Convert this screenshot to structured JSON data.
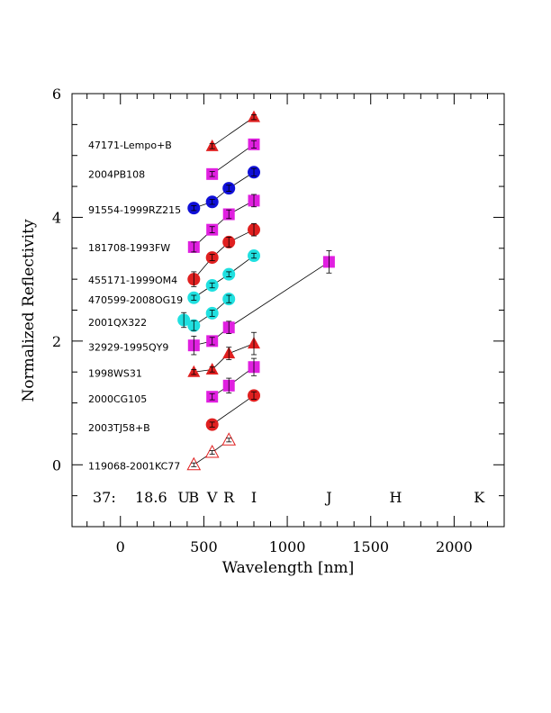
{
  "chart_data": {
    "type": "scatter",
    "xlabel": "Wavelength [nm]",
    "ylabel": "Normalized Reflectivity",
    "xlim": [
      -290,
      2300
    ],
    "ylim": [
      -1,
      6
    ],
    "xticks": [
      0,
      500,
      1000,
      1500,
      2000
    ],
    "yticks": [
      0,
      2,
      4,
      6
    ],
    "grid": false,
    "legend": "none",
    "annotation": {
      "left": "37:",
      "mid": "18.6",
      "bands": [
        {
          "label": "U",
          "x": 380
        },
        {
          "label": "B",
          "x": 440
        },
        {
          "label": "V",
          "x": 550
        },
        {
          "label": "R",
          "x": 650
        },
        {
          "label": "I",
          "x": 800
        },
        {
          "label": "J",
          "x": 1250
        },
        {
          "label": "H",
          "x": 1650
        },
        {
          "label": "K",
          "x": 2150
        }
      ]
    },
    "series": [
      {
        "name": "47171-Lempo+B",
        "marker": "triangle",
        "color": "#e02020",
        "label_y": 5.17,
        "points": [
          {
            "x": 550,
            "y": 5.15,
            "err": 0.04
          },
          {
            "x": 800,
            "y": 5.62,
            "err": 0.04
          }
        ]
      },
      {
        "name": "2004PB108",
        "marker": "square",
        "color": "#e020e0",
        "label_y": 4.7,
        "points": [
          {
            "x": 550,
            "y": 4.7,
            "err": 0.04
          },
          {
            "x": 800,
            "y": 5.18,
            "err": 0.06
          }
        ]
      },
      {
        "name": "91554-1999RZ215",
        "marker": "circle",
        "color": "#1010d8",
        "label_y": 4.12,
        "points": [
          {
            "x": 440,
            "y": 4.15,
            "err": 0.04
          },
          {
            "x": 550,
            "y": 4.25,
            "err": 0.04
          },
          {
            "x": 650,
            "y": 4.47,
            "err": 0.05
          },
          {
            "x": 800,
            "y": 4.73,
            "err": 0.06
          }
        ]
      },
      {
        "name": "181708-1993FW",
        "marker": "square",
        "color": "#e020e0",
        "label_y": 3.51,
        "points": [
          {
            "x": 440,
            "y": 3.52,
            "err": 0.08
          },
          {
            "x": 550,
            "y": 3.8,
            "err": 0.05
          },
          {
            "x": 650,
            "y": 4.05,
            "err": 0.07
          },
          {
            "x": 800,
            "y": 4.27,
            "err": 0.1
          }
        ]
      },
      {
        "name": "455171-1999OM4",
        "marker": "circle",
        "color": "#e02020",
        "label_y": 2.99,
        "points": [
          {
            "x": 440,
            "y": 3.0,
            "err": 0.12
          },
          {
            "x": 550,
            "y": 3.35,
            "err": 0.05
          },
          {
            "x": 650,
            "y": 3.6,
            "err": 0.08
          },
          {
            "x": 800,
            "y": 3.8,
            "err": 0.1
          }
        ]
      },
      {
        "name": "470599-2008OG19",
        "marker": "circle",
        "color": "#20e0e0",
        "label_y": 2.67,
        "points": [
          {
            "x": 440,
            "y": 2.7,
            "err": 0.04
          },
          {
            "x": 550,
            "y": 2.9,
            "err": 0.04
          },
          {
            "x": 650,
            "y": 3.08,
            "err": 0.04
          },
          {
            "x": 800,
            "y": 3.38,
            "err": 0.04
          }
        ]
      },
      {
        "name": "2001QX322",
        "marker": "circle",
        "color": "#20e0e0",
        "label_y": 2.3,
        "points": [
          {
            "x": 380,
            "y": 2.34,
            "err": 0.12
          },
          {
            "x": 440,
            "y": 2.25,
            "err": 0.08
          },
          {
            "x": 550,
            "y": 2.45,
            "err": 0.05
          },
          {
            "x": 650,
            "y": 2.68,
            "err": 0.06
          }
        ]
      },
      {
        "name": "32929-1995QY9",
        "marker": "square",
        "color": "#e020e0",
        "label_y": 1.9,
        "points": [
          {
            "x": 440,
            "y": 1.93,
            "err": 0.15
          },
          {
            "x": 550,
            "y": 2.0,
            "err": 0.06
          },
          {
            "x": 650,
            "y": 2.22,
            "err": 0.1
          },
          {
            "x": 1250,
            "y": 3.28,
            "err": 0.18
          }
        ]
      },
      {
        "name": "1998WS31",
        "marker": "triangle",
        "color": "#e02020",
        "label_y": 1.48,
        "points": [
          {
            "x": 440,
            "y": 1.5,
            "err": 0.04
          },
          {
            "x": 550,
            "y": 1.54,
            "err": 0.04
          },
          {
            "x": 650,
            "y": 1.8,
            "err": 0.1
          },
          {
            "x": 800,
            "y": 1.96,
            "err": 0.18
          }
        ]
      },
      {
        "name": "2000CG105",
        "marker": "square",
        "color": "#e020e0",
        "label_y": 1.07,
        "points": [
          {
            "x": 550,
            "y": 1.1,
            "err": 0.05
          },
          {
            "x": 650,
            "y": 1.28,
            "err": 0.12
          },
          {
            "x": 800,
            "y": 1.58,
            "err": 0.14
          }
        ]
      },
      {
        "name": "2003TJ58+B",
        "marker": "circle",
        "color": "#e02020",
        "label_y": 0.6,
        "points": [
          {
            "x": 550,
            "y": 0.65,
            "err": 0.04
          },
          {
            "x": 800,
            "y": 1.12,
            "err": 0.06
          }
        ]
      },
      {
        "name": "119068-2001KC77",
        "marker": "triangle-open",
        "color": "#e02020",
        "label_y": -0.02,
        "points": [
          {
            "x": 440,
            "y": 0.0,
            "err": 0.03
          },
          {
            "x": 550,
            "y": 0.2,
            "err": 0.03
          },
          {
            "x": 650,
            "y": 0.4,
            "err": 0.03
          }
        ]
      }
    ]
  }
}
